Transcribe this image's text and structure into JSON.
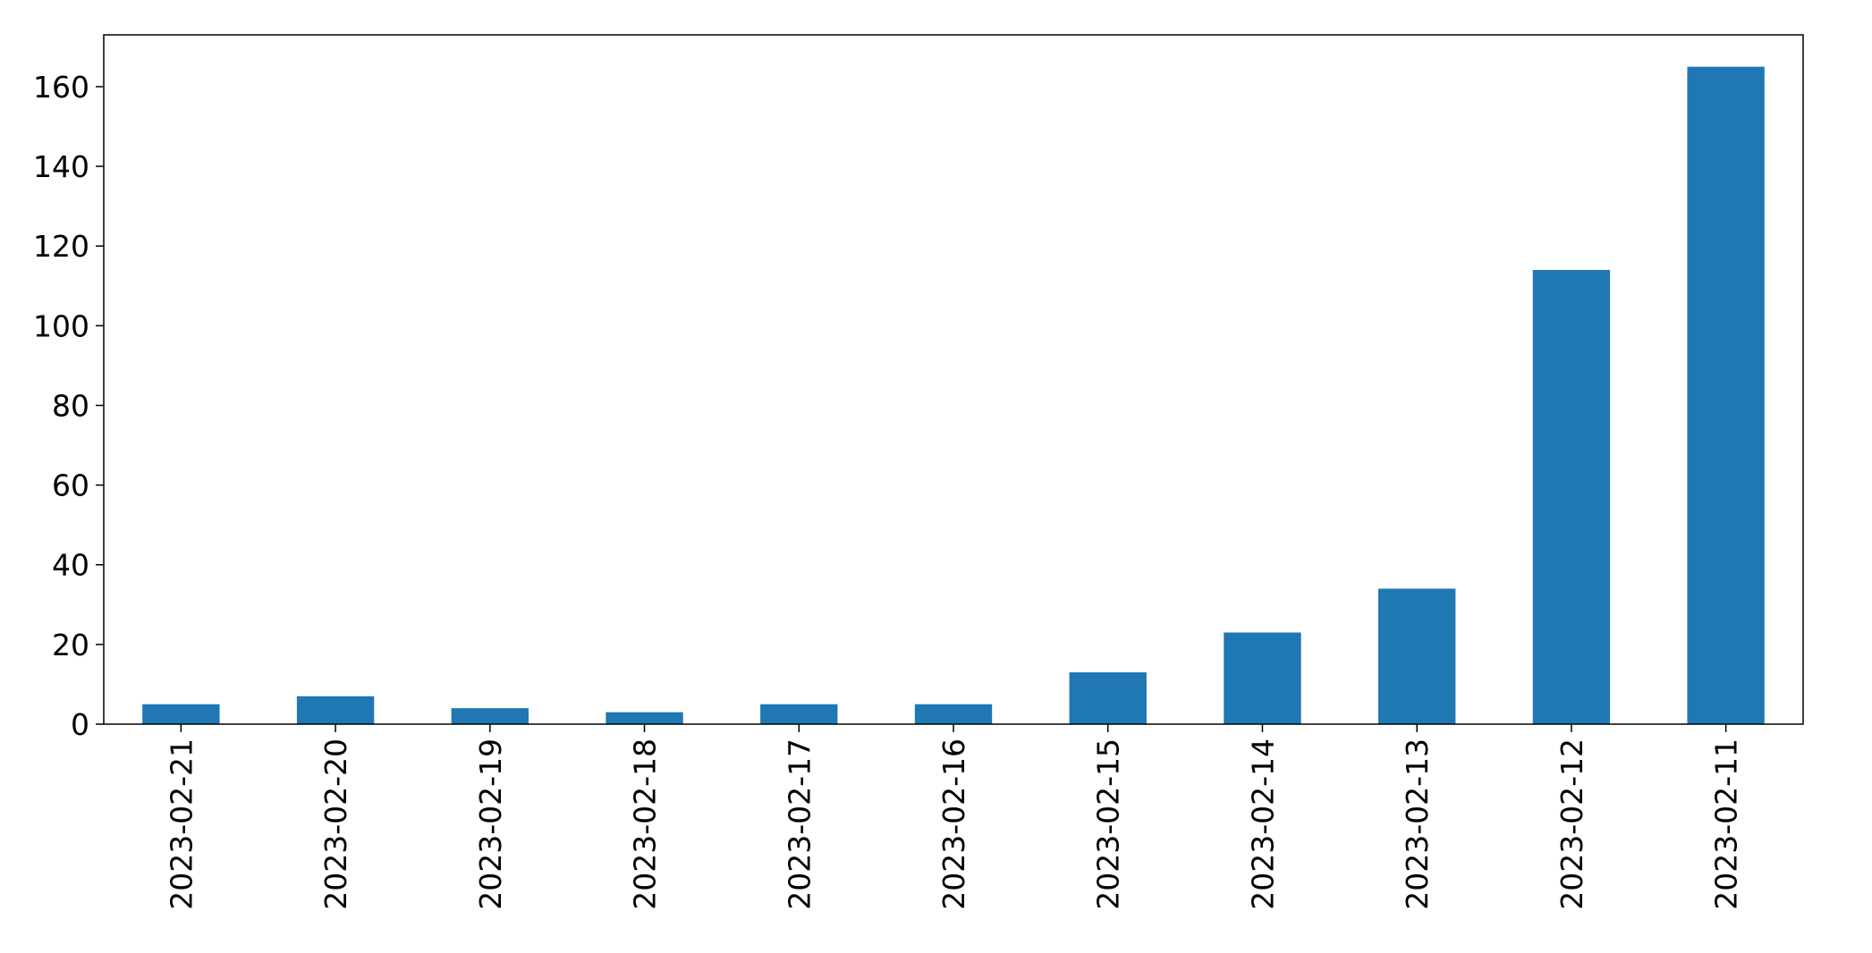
{
  "chart_data": {
    "type": "bar",
    "categories": [
      "2023-02-21",
      "2023-02-20",
      "2023-02-19",
      "2023-02-18",
      "2023-02-17",
      "2023-02-16",
      "2023-02-15",
      "2023-02-14",
      "2023-02-13",
      "2023-02-12",
      "2023-02-11"
    ],
    "values": [
      5,
      7,
      4,
      3,
      5,
      5,
      13,
      23,
      34,
      114,
      165
    ],
    "yticks": [
      "0",
      "20",
      "40",
      "60",
      "80",
      "100",
      "120",
      "140",
      "160"
    ],
    "ylim": [
      0,
      173
    ],
    "x_tick_rotation": "vertical",
    "grid": false,
    "legend": false,
    "bar_color": "#1f77b4",
    "axis_color": "#000000"
  }
}
